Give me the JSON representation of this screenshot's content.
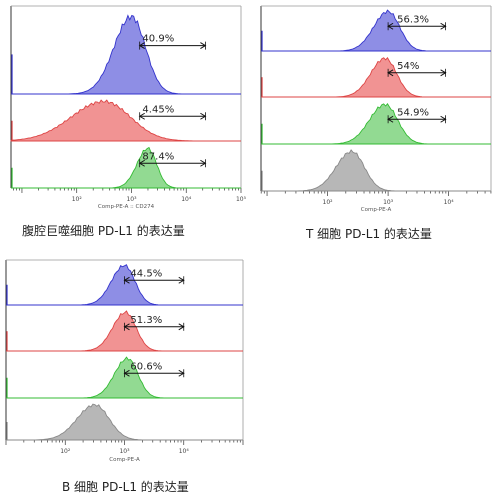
{
  "chart_data": [
    {
      "type": "area",
      "caption": "腹腔巨噬细胞 PD-L1 的表达量",
      "xlabel": "Comp-PE-A :: CD274",
      "tick_labels": [
        "10²",
        "10³",
        "10⁴",
        "10⁵"
      ],
      "series": [
        {
          "color": "#3333cc",
          "peak_log": 3.0,
          "width": 0.32,
          "gate_label": "40.9%"
        },
        {
          "color": "#dd4444",
          "peak_log": 2.5,
          "width": 0.6,
          "gate_label": "4.45%"
        },
        {
          "color": "#33bb33",
          "peak_log": 3.3,
          "width": 0.2,
          "gate_label": "87.4%"
        }
      ]
    },
    {
      "type": "area",
      "caption": "T 细胞 PD-L1 的表达量",
      "xlabel": "Comp-PE-A",
      "tick_labels": [
        "10²",
        "10³",
        "10⁴"
      ],
      "series": [
        {
          "color": "#3333cc",
          "peak_log": 3.0,
          "width": 0.24,
          "gate_label": "56.3%"
        },
        {
          "color": "#dd4444",
          "peak_log": 2.95,
          "width": 0.24,
          "gate_label": "54%"
        },
        {
          "color": "#33bb33",
          "peak_log": 2.95,
          "width": 0.26,
          "gate_label": "54.9%"
        },
        {
          "color": "#888888",
          "peak_log": 2.4,
          "width": 0.26,
          "gate_label": ""
        }
      ]
    },
    {
      "type": "area",
      "caption": "B 细胞 PD-L1 的表达量",
      "xlabel": "Comp-PE-A",
      "tick_labels": [
        "10²",
        "10³",
        "10⁴"
      ],
      "series": [
        {
          "color": "#3333cc",
          "peak_log": 3.0,
          "width": 0.22,
          "gate_label": "44.5%"
        },
        {
          "color": "#dd4444",
          "peak_log": 3.02,
          "width": 0.22,
          "gate_label": "51.3%"
        },
        {
          "color": "#33bb33",
          "peak_log": 3.05,
          "width": 0.22,
          "gate_label": "60.6%"
        },
        {
          "color": "#888888",
          "peak_log": 2.5,
          "width": 0.3,
          "gate_label": ""
        }
      ]
    }
  ]
}
